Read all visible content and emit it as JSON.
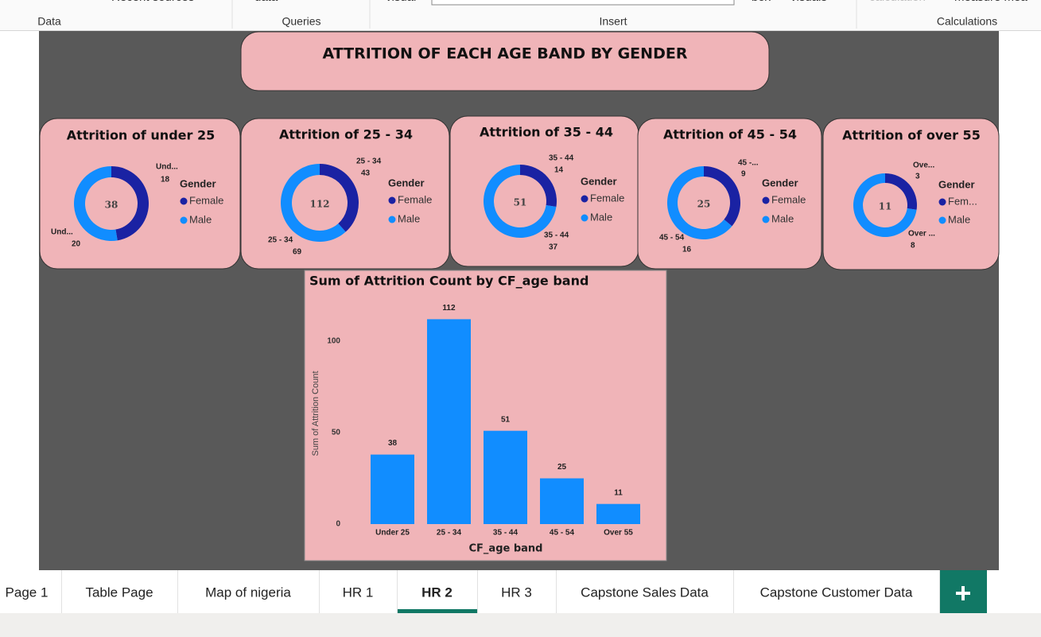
{
  "ribbon": {
    "groups": [
      "Data",
      "Queries",
      "Insert",
      "Calculations"
    ],
    "cut_labels": [
      "Recent sources",
      "data",
      "visual",
      "box",
      "visuals",
      "calculation",
      "measure mea"
    ]
  },
  "report": {
    "title": "ATTRITION OF EACH AGE BAND BY GENDER"
  },
  "chart_data": [
    {
      "type": "donut",
      "title": "Attrition of under 25",
      "legend_title": "Gender",
      "categories": [
        "Female",
        "Male"
      ],
      "slice_labels": [
        "Und...",
        "Und..."
      ],
      "values": [
        18,
        20
      ],
      "total": 38,
      "colors": [
        "#1a22a3",
        "#118dff"
      ]
    },
    {
      "type": "donut",
      "title": "Attrition of 25 - 34",
      "legend_title": "Gender",
      "categories": [
        "Female",
        "Male"
      ],
      "slice_labels": [
        "25 - 34",
        "25 - 34"
      ],
      "values": [
        43,
        69
      ],
      "total": 112,
      "colors": [
        "#1a22a3",
        "#118dff"
      ]
    },
    {
      "type": "donut",
      "title": "Attrition of 35 - 44",
      "legend_title": "Gender",
      "categories": [
        "Female",
        "Male"
      ],
      "slice_labels": [
        "35 - 44",
        "35 - 44"
      ],
      "values": [
        14,
        37
      ],
      "total": 51,
      "colors": [
        "#1a22a3",
        "#118dff"
      ]
    },
    {
      "type": "donut",
      "title": "Attrition of 45 - 54",
      "legend_title": "Gender",
      "categories": [
        "Female",
        "Male"
      ],
      "slice_labels": [
        "45 -...",
        "45 - 54"
      ],
      "values": [
        9,
        16
      ],
      "total": 25,
      "colors": [
        "#1a22a3",
        "#118dff"
      ]
    },
    {
      "type": "donut",
      "title": "Attrition of over 55",
      "legend_title": "Gender",
      "categories": [
        "Fem...",
        "Male"
      ],
      "slice_labels": [
        "Ove...",
        "Over ..."
      ],
      "values": [
        3,
        8
      ],
      "total": 11,
      "colors": [
        "#1a22a3",
        "#118dff"
      ]
    },
    {
      "type": "bar",
      "title": "Sum of Attrition Count by CF_age band",
      "xlabel": "CF_age band",
      "ylabel": "Sum of Attrition Count",
      "categories": [
        "Under 25",
        "25 - 34",
        "35 - 44",
        "45 - 54",
        "Over 55"
      ],
      "values": [
        38,
        112,
        51,
        25,
        11
      ],
      "color": "#118dff",
      "ylim": [
        0,
        120
      ],
      "yticks": [
        0,
        50,
        100
      ],
      "grid": false
    }
  ],
  "tabs": {
    "items": [
      "Page 1",
      "Table Page",
      "Map of nigeria",
      "HR 1",
      "HR 2",
      "HR 3",
      "Capstone Sales Data",
      "Capstone Customer Data"
    ],
    "active": 4
  }
}
